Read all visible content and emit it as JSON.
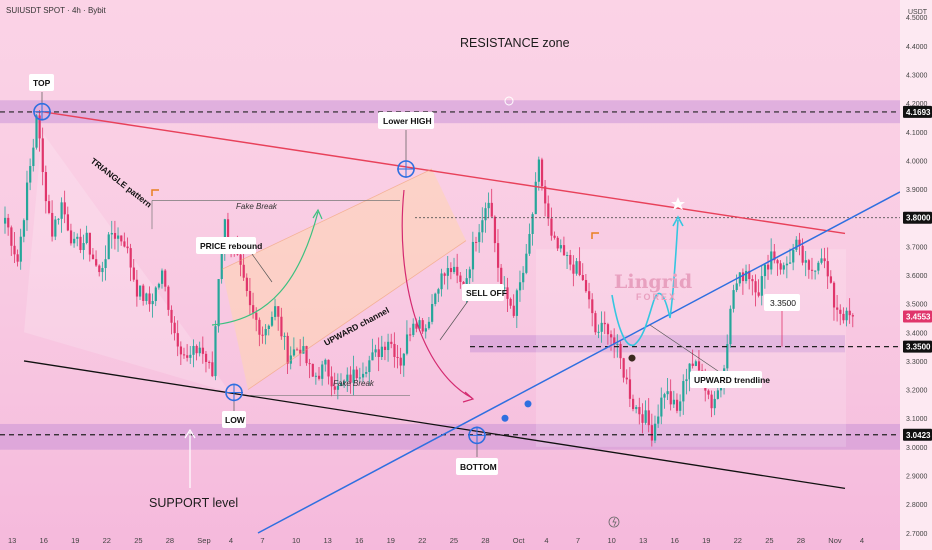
{
  "header": {
    "symbol": "SUIUSDT SPOT · 4h · Bybit",
    "currency": "USDT"
  },
  "watermark": {
    "brand": "Lingrid",
    "sub": "FOREX"
  },
  "colors": {
    "bull": "#26a69a",
    "bear": "#e0356b",
    "resistance_line": "#e8415a",
    "trendline": "#2f6fe0",
    "support_line": "#111111",
    "projection": "#35c6e0",
    "zone": "#c08ad4",
    "price_tag": "#e0356b"
  },
  "annotations": {
    "resistance_zone": "RESISTANCE zone",
    "support_level": "SUPPORT level",
    "top": "TOP",
    "lower_high": "Lower HIGH",
    "low": "LOW",
    "bottom": "BOTTOM",
    "price_rebound": "PRICE rebound",
    "sell_off": "SELL OFF",
    "triangle_pattern": "TRIANGLE pattern",
    "upward_channel": "UPWARD channel",
    "fake_break": "Fake Break",
    "upward_trendline": "UPWARD trendline",
    "target_label": "3.3500"
  },
  "chart_data": {
    "type": "candlestick",
    "symbol": "SUIUSDT",
    "interval": "4h",
    "exchange": "Bybit",
    "x_ticks": [
      "13",
      "16",
      "19",
      "22",
      "25",
      "28",
      "Sep",
      "4",
      "7",
      "10",
      "13",
      "16",
      "19",
      "22",
      "25",
      "28",
      "Oct",
      "4",
      "7",
      "10",
      "13",
      "16",
      "19",
      "22",
      "25",
      "28",
      "Nov",
      "4"
    ],
    "y_ticks": [
      "4.5000",
      "4.4000",
      "4.3000",
      "4.2000",
      "4.1000",
      "4.0000",
      "3.9000",
      "3.8000",
      "3.7000",
      "3.6000",
      "3.5000",
      "3.4000",
      "3.3000",
      "3.2000",
      "3.1000",
      "3.0000",
      "2.9000",
      "2.8000",
      "2.7000"
    ],
    "ylim": [
      2.64,
      4.56
    ],
    "price_labels": [
      {
        "text": "4.1693",
        "value": 4.1693
      },
      {
        "text": "3.8000",
        "value": 3.8
      },
      {
        "text": "3.4553",
        "value": 3.4553,
        "current": true
      },
      {
        "text": "3.3500",
        "value": 3.35
      },
      {
        "text": "3.0423",
        "value": 3.0423
      }
    ],
    "key_levels": [
      {
        "name": "TOP",
        "date": "Aug 14",
        "price": 4.17
      },
      {
        "name": "Lower HIGH",
        "date": "Sep 19",
        "price": 3.97
      },
      {
        "name": "LOW",
        "date": "Sep 1",
        "price": 3.19
      },
      {
        "name": "BOTTOM",
        "date": "Sep 26",
        "price": 3.04
      }
    ],
    "series": [
      {
        "name": "SUIUSDT",
        "anchors": [
          [
            0,
            3.8
          ],
          [
            4,
            3.65
          ],
          [
            7,
            3.9
          ],
          [
            9,
            4.05
          ],
          [
            10,
            4.17
          ],
          [
            12,
            3.95
          ],
          [
            15,
            3.75
          ],
          [
            18,
            3.85
          ],
          [
            22,
            3.7
          ],
          [
            26,
            3.72
          ],
          [
            30,
            3.6
          ],
          [
            34,
            3.75
          ],
          [
            38,
            3.72
          ],
          [
            42,
            3.55
          ],
          [
            46,
            3.5
          ],
          [
            50,
            3.6
          ],
          [
            54,
            3.4
          ],
          [
            58,
            3.3
          ],
          [
            62,
            3.35
          ],
          [
            66,
            3.25
          ],
          [
            68,
            3.6
          ],
          [
            70,
            3.78
          ],
          [
            74,
            3.65
          ],
          [
            78,
            3.48
          ],
          [
            82,
            3.4
          ],
          [
            86,
            3.48
          ],
          [
            90,
            3.32
          ],
          [
            94,
            3.35
          ],
          [
            98,
            3.24
          ],
          [
            102,
            3.28
          ],
          [
            106,
            3.2
          ],
          [
            110,
            3.24
          ],
          [
            114,
            3.28
          ],
          [
            118,
            3.32
          ],
          [
            122,
            3.38
          ],
          [
            126,
            3.3
          ],
          [
            130,
            3.45
          ],
          [
            134,
            3.42
          ],
          [
            138,
            3.58
          ],
          [
            142,
            3.62
          ],
          [
            146,
            3.55
          ],
          [
            150,
            3.74
          ],
          [
            154,
            3.88
          ],
          [
            158,
            3.55
          ],
          [
            162,
            3.48
          ],
          [
            166,
            3.65
          ],
          [
            170,
            3.98
          ],
          [
            174,
            3.72
          ],
          [
            178,
            3.66
          ],
          [
            182,
            3.62
          ],
          [
            185,
            3.55
          ],
          [
            188,
            3.4
          ],
          [
            192,
            3.42
          ],
          [
            196,
            3.3
          ],
          [
            200,
            3.15
          ],
          [
            204,
            3.1
          ],
          [
            206,
            3.05
          ],
          [
            210,
            3.2
          ],
          [
            214,
            3.12
          ],
          [
            218,
            3.3
          ],
          [
            222,
            3.25
          ],
          [
            225,
            3.15
          ],
          [
            228,
            3.22
          ],
          [
            232,
            3.55
          ],
          [
            236,
            3.62
          ],
          [
            240,
            3.55
          ],
          [
            244,
            3.68
          ],
          [
            248,
            3.62
          ],
          [
            252,
            3.7
          ],
          [
            256,
            3.6
          ],
          [
            260,
            3.68
          ],
          [
            264,
            3.5
          ],
          [
            268,
            3.45
          ],
          [
            270,
            3.4553
          ]
        ]
      }
    ]
  }
}
